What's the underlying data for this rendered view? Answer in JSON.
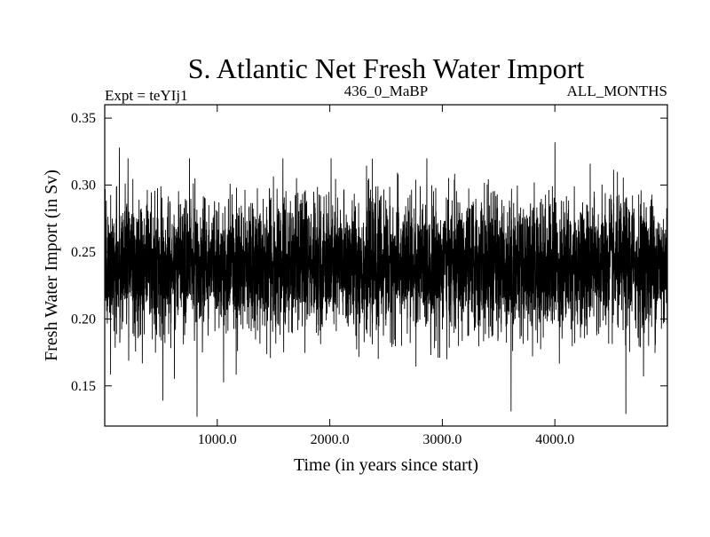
{
  "chart_data": {
    "type": "line",
    "title": "S. Atlantic Net Fresh Water Import",
    "subtitle_left": "Expt = teYIj1",
    "subtitle_center": "436_0_MaBP",
    "subtitle_right": "ALL_MONTHS",
    "xlabel": "Time (in years since start)",
    "ylabel": "Fresh Water Import (in Sv)",
    "xlim": [
      0,
      5000
    ],
    "ylim": [
      0.12,
      0.36
    ],
    "x_ticks": [
      {
        "value": 1000,
        "label": "1000.0"
      },
      {
        "value": 2000,
        "label": "2000.0"
      },
      {
        "value": 3000,
        "label": "3000.0"
      },
      {
        "value": 4000,
        "label": "4000.0"
      }
    ],
    "y_ticks": [
      {
        "value": 0.15,
        "label": "0.15"
      },
      {
        "value": 0.2,
        "label": "0.20"
      },
      {
        "value": 0.25,
        "label": "0.25"
      },
      {
        "value": 0.3,
        "label": "0.30"
      },
      {
        "value": 0.35,
        "label": "0.35"
      }
    ],
    "grid": false,
    "series": [
      {
        "name": "S. Atlantic net fresh water import",
        "color": "#000000",
        "n_points": 5000,
        "approx_mean": 0.24,
        "approx_std": 0.025,
        "approx_min": 0.127,
        "approx_max": 0.332,
        "notable_extremes": [
          {
            "x": 820,
            "y": 0.127
          },
          {
            "x": 3610,
            "y": 0.131
          },
          {
            "x": 4630,
            "y": 0.129
          },
          {
            "x": 4000,
            "y": 0.332
          },
          {
            "x": 130,
            "y": 0.328
          }
        ]
      }
    ]
  }
}
